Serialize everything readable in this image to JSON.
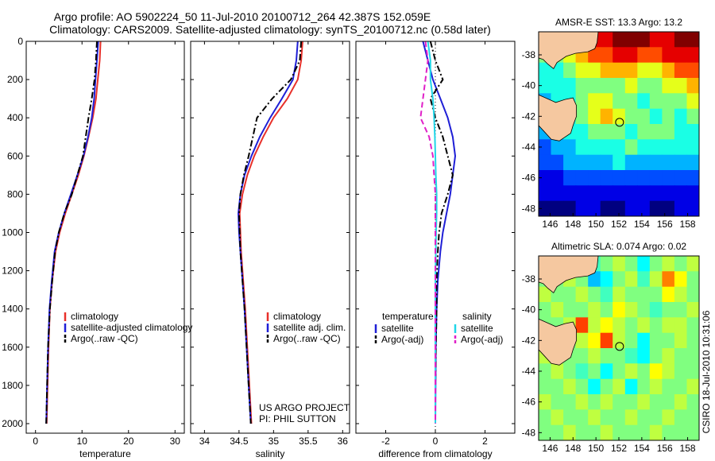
{
  "header": {
    "line1": "Argo profile: AO 5902224_50 11-Jul-2010 20100712_264 42.387S 152.059E",
    "line2": "Climatology: CARS2009. Satellite-adjusted climatology: synTS_20100712.nc (0.58d later)"
  },
  "side_label": "CSIRO 18-Jul-2010 10:31:06",
  "project_note": {
    "line1": "US ARGO PROJECT",
    "line2": "PI: PHIL SUTTON"
  },
  "colors": {
    "climatology": "#e8302a",
    "satellite": "#1f1fd6",
    "argo": "#000000",
    "sat_salinity": "#20d6e8",
    "argo_salinity": "#e020c8",
    "land": "#f5c8a0"
  },
  "chart_data": [
    {
      "type": "line",
      "id": "temperature",
      "xlabel": "temperature",
      "ylabel": "",
      "xlim": [
        -2,
        32
      ],
      "ylim": [
        0,
        2050
      ],
      "y_reversed": true,
      "xticks": [
        0,
        10,
        20,
        30
      ],
      "yticks": [
        0,
        200,
        400,
        600,
        800,
        1000,
        1200,
        1400,
        1600,
        1800,
        2000
      ],
      "legend": [
        "climatology",
        "satellite-adjusted climatology",
        "Argo(..raw -QC)"
      ],
      "series": [
        {
          "name": "climatology",
          "style": "solid",
          "x": [
            14.0,
            13.8,
            13.4,
            13.0,
            12.3,
            11.4,
            10.4,
            9.2,
            7.8,
            6.4,
            5.2,
            4.3,
            3.6,
            3.1,
            2.8,
            2.6,
            2.4
          ],
          "y": [
            0,
            100,
            200,
            300,
            400,
            500,
            600,
            700,
            800,
            900,
            1000,
            1100,
            1250,
            1400,
            1600,
            1800,
            2000
          ]
        },
        {
          "name": "satellite-adjusted climatology",
          "style": "solid",
          "x": [
            13.5,
            13.2,
            12.9,
            12.6,
            12.1,
            11.3,
            10.3,
            9.0,
            7.6,
            6.2,
            5.0,
            4.1,
            3.5,
            3.0,
            2.7,
            2.5,
            2.3
          ],
          "y": [
            0,
            100,
            200,
            300,
            400,
            500,
            600,
            700,
            800,
            900,
            1000,
            1100,
            1250,
            1400,
            1600,
            1800,
            2000
          ]
        },
        {
          "name": "Argo(..raw -QC)",
          "style": "dashdot",
          "x": [
            13.2,
            13.0,
            12.7,
            12.1,
            11.4,
            10.8,
            10.2,
            9.0,
            7.8,
            6.2,
            5.0,
            4.2,
            3.6,
            3.1,
            2.7,
            2.5,
            2.3
          ],
          "y": [
            0,
            100,
            200,
            300,
            400,
            500,
            600,
            700,
            800,
            900,
            1000,
            1100,
            1250,
            1400,
            1600,
            1800,
            2000
          ]
        }
      ]
    },
    {
      "type": "line",
      "id": "salinity",
      "xlabel": "salinity",
      "ylabel": "",
      "xlim": [
        33.8,
        36.1
      ],
      "ylim": [
        0,
        2050
      ],
      "y_reversed": true,
      "xticks": [
        34,
        34.5,
        35,
        35.5,
        36
      ],
      "legend": [
        "climatology",
        "satellite adj. clim.",
        "Argo(..raw -QC)"
      ],
      "series": [
        {
          "name": "climatology",
          "style": "solid",
          "x": [
            35.42,
            35.4,
            35.35,
            35.2,
            35.0,
            34.85,
            34.72,
            34.62,
            34.55,
            34.51,
            34.52,
            34.53,
            34.56,
            34.59,
            34.62,
            34.65,
            34.68
          ],
          "y": [
            0,
            100,
            200,
            300,
            400,
            500,
            600,
            700,
            800,
            900,
            1000,
            1100,
            1250,
            1400,
            1600,
            1800,
            2000
          ]
        },
        {
          "name": "satellite adj. clim.",
          "style": "solid",
          "x": [
            35.35,
            35.33,
            35.28,
            35.12,
            34.95,
            34.8,
            34.68,
            34.58,
            34.52,
            34.49,
            34.5,
            34.52,
            34.55,
            34.58,
            34.61,
            34.64,
            34.67
          ],
          "y": [
            0,
            100,
            200,
            300,
            400,
            500,
            600,
            700,
            800,
            900,
            1000,
            1100,
            1250,
            1400,
            1600,
            1800,
            2000
          ]
        },
        {
          "name": "Argo(..raw -QC)",
          "style": "dashdot",
          "x": [
            35.4,
            35.38,
            35.25,
            34.98,
            34.76,
            34.7,
            34.64,
            34.57,
            34.52,
            34.5,
            34.51,
            34.52,
            34.55,
            34.58,
            34.61,
            34.64,
            34.67
          ],
          "y": [
            0,
            100,
            200,
            300,
            400,
            500,
            600,
            700,
            800,
            900,
            1000,
            1100,
            1250,
            1400,
            1600,
            1800,
            2000
          ]
        }
      ]
    },
    {
      "type": "line",
      "id": "difference",
      "xlabel": "difference from climatology",
      "ylabel": "",
      "xlim": [
        -3.2,
        3.2
      ],
      "ylim": [
        0,
        2050
      ],
      "y_reversed": true,
      "xticks": [
        -2,
        0,
        2
      ],
      "reference_line_x": 0,
      "legend_left_title": "temperature",
      "legend_right_title": "salinity",
      "legend": [
        "satellite",
        "Argo(-adj)",
        "satellite",
        "Argo(-adj)"
      ],
      "series": [
        {
          "name": "satellite",
          "group": "temperature",
          "style": "solid",
          "x": [
            -0.5,
            -0.3,
            -0.1,
            0.2,
            0.5,
            0.7,
            0.8,
            0.7,
            0.6,
            0.45,
            0.3,
            0.2,
            0.1,
            0.05,
            0.02,
            0.01,
            0.0
          ],
          "y": [
            0,
            100,
            200,
            300,
            400,
            500,
            600,
            700,
            800,
            900,
            1000,
            1100,
            1250,
            1400,
            1600,
            1800,
            2000
          ]
        },
        {
          "name": "Argo(-adj)",
          "group": "temperature",
          "style": "dashdot",
          "x": [
            -0.2,
            0.0,
            0.3,
            -0.2,
            0.0,
            0.3,
            0.5,
            0.7,
            0.5,
            0.25,
            0.15,
            0.1,
            0.05,
            0.05,
            0.02,
            0.0,
            0.0
          ],
          "y": [
            0,
            100,
            200,
            300,
            400,
            500,
            600,
            700,
            800,
            900,
            1000,
            1100,
            1250,
            1400,
            1600,
            1800,
            2000
          ]
        },
        {
          "name": "satellite",
          "group": "salinity",
          "style": "solid",
          "x": [
            -0.3,
            -0.2,
            -0.2,
            -0.1,
            -0.05,
            -0.02,
            0.0,
            0.02,
            0.05,
            0.05,
            0.03,
            0.02,
            0.0,
            0.0,
            0.0,
            0.0,
            0.0
          ],
          "y": [
            0,
            100,
            200,
            300,
            400,
            500,
            600,
            700,
            800,
            900,
            1000,
            1100,
            1250,
            1400,
            1600,
            1800,
            2000
          ]
        },
        {
          "name": "Argo(-adj)",
          "group": "salinity",
          "style": "dashed",
          "x": [
            -0.4,
            -0.3,
            -0.4,
            -0.5,
            -0.6,
            -0.25,
            -0.1,
            -0.05,
            0.0,
            0.0,
            0.0,
            0.0,
            0.0,
            0.0,
            0.0,
            0.0,
            0.0
          ],
          "y": [
            0,
            100,
            200,
            300,
            400,
            500,
            600,
            700,
            800,
            900,
            1000,
            1100,
            1250,
            1400,
            1600,
            1800,
            2000
          ]
        }
      ]
    },
    {
      "type": "heatmap",
      "id": "sst_map",
      "title": "AMSR-E SST: 13.3  Argo: 13.2",
      "xlim": [
        145,
        159
      ],
      "ylim": [
        -48.5,
        -36.5
      ],
      "xticks": [
        146,
        148,
        150,
        152,
        154,
        156,
        158
      ],
      "yticks": [
        -38,
        -40,
        -42,
        -44,
        -46,
        -48
      ],
      "marker": {
        "lon": 152.059,
        "lat": -42.387
      },
      "palette": "jet",
      "value_range": [
        8,
        18
      ],
      "description_grid_rows": [
        [
          13,
          14,
          15,
          16,
          17,
          17,
          18,
          18,
          18,
          17,
          17,
          18,
          18
        ],
        [
          13,
          13,
          14,
          15,
          16,
          16,
          17,
          17,
          16,
          16,
          17,
          17,
          17
        ],
        [
          12,
          12,
          13,
          14,
          14,
          15,
          15,
          15,
          14,
          14,
          15,
          16,
          16
        ],
        [
          12,
          12,
          12,
          13,
          13,
          13,
          13,
          14,
          13,
          13,
          14,
          14,
          15
        ],
        [
          11,
          12,
          12,
          13,
          14,
          14,
          13,
          13,
          12,
          13,
          13,
          13,
          14
        ],
        [
          11,
          11,
          12,
          13,
          14,
          15,
          14,
          13,
          13,
          12,
          13,
          12,
          13
        ],
        [
          11,
          11,
          12,
          12,
          13,
          13,
          13,
          12,
          13,
          13,
          13,
          12,
          12
        ],
        [
          10,
          11,
          11,
          12,
          12,
          12,
          12,
          13,
          12,
          12,
          12,
          12,
          12
        ],
        [
          10,
          10,
          11,
          11,
          11,
          11,
          12,
          11,
          11,
          11,
          11,
          11,
          11
        ],
        [
          9,
          9,
          10,
          10,
          10,
          10,
          10,
          10,
          10,
          10,
          10,
          10,
          10
        ],
        [
          9,
          9,
          9,
          9,
          9,
          9,
          9,
          9,
          9,
          9,
          9,
          9,
          9
        ],
        [
          8,
          8,
          8,
          9,
          9,
          8,
          8,
          9,
          9,
          8,
          8,
          9,
          9
        ]
      ]
    },
    {
      "type": "heatmap",
      "id": "sla_map",
      "title": "Altimetric SLA: 0.074  Argo: 0.02",
      "xlim": [
        145,
        159
      ],
      "ylim": [
        -48.5,
        -36.5
      ],
      "xticks": [
        146,
        148,
        150,
        152,
        154,
        156,
        158
      ],
      "yticks": [
        -38,
        -40,
        -42,
        -44,
        -46,
        -48
      ],
      "marker": {
        "lon": 152.059,
        "lat": -42.387
      },
      "palette": "jet",
      "value_range": [
        -0.4,
        0.4
      ],
      "description_grid_rows": [
        [
          0.0,
          0.05,
          0.1,
          0.0,
          -0.05,
          0.0,
          0.05,
          0.0,
          -0.1,
          0.0,
          0.05,
          0.0,
          0.05
        ],
        [
          0.0,
          0.0,
          0.05,
          0.0,
          -0.15,
          -0.1,
          0.0,
          0.05,
          -0.05,
          0.05,
          0.2,
          0.1,
          0.0
        ],
        [
          0.05,
          0.0,
          0.0,
          0.05,
          0.0,
          -0.05,
          0.05,
          0.0,
          0.0,
          0.0,
          0.1,
          0.05,
          0.0
        ],
        [
          0.0,
          0.05,
          0.0,
          0.0,
          0.05,
          0.0,
          0.1,
          0.05,
          0.0,
          -0.05,
          0.0,
          0.0,
          0.05
        ],
        [
          0.0,
          0.0,
          0.05,
          0.25,
          0.05,
          0.1,
          0.05,
          0.0,
          0.05,
          0.0,
          0.05,
          0.05,
          0.0
        ],
        [
          0.0,
          0.0,
          0.0,
          0.05,
          0.1,
          0.25,
          0.05,
          0.0,
          -0.1,
          0.0,
          0.0,
          0.05,
          0.0
        ],
        [
          0.05,
          0.0,
          0.0,
          0.0,
          0.05,
          0.0,
          0.0,
          -0.05,
          -0.1,
          0.0,
          0.05,
          0.0,
          0.0
        ],
        [
          0.0,
          0.05,
          0.0,
          -0.05,
          0.0,
          -0.1,
          0.0,
          0.05,
          0.0,
          0.1,
          0.05,
          0.0,
          0.0
        ],
        [
          0.0,
          0.0,
          0.05,
          0.0,
          -0.1,
          0.0,
          0.05,
          -0.1,
          0.0,
          0.05,
          0.0,
          0.0,
          0.05
        ],
        [
          0.05,
          0.0,
          0.0,
          0.05,
          0.0,
          0.05,
          0.0,
          0.0,
          0.05,
          0.0,
          0.0,
          0.05,
          0.0
        ],
        [
          0.0,
          0.05,
          0.0,
          0.0,
          0.05,
          0.0,
          0.0,
          0.05,
          0.0,
          0.0,
          0.05,
          0.0,
          0.0
        ],
        [
          0.0,
          0.0,
          0.05,
          0.0,
          0.0,
          0.05,
          0.0,
          0.0,
          0.0,
          0.05,
          0.0,
          0.0,
          0.0
        ]
      ]
    }
  ]
}
